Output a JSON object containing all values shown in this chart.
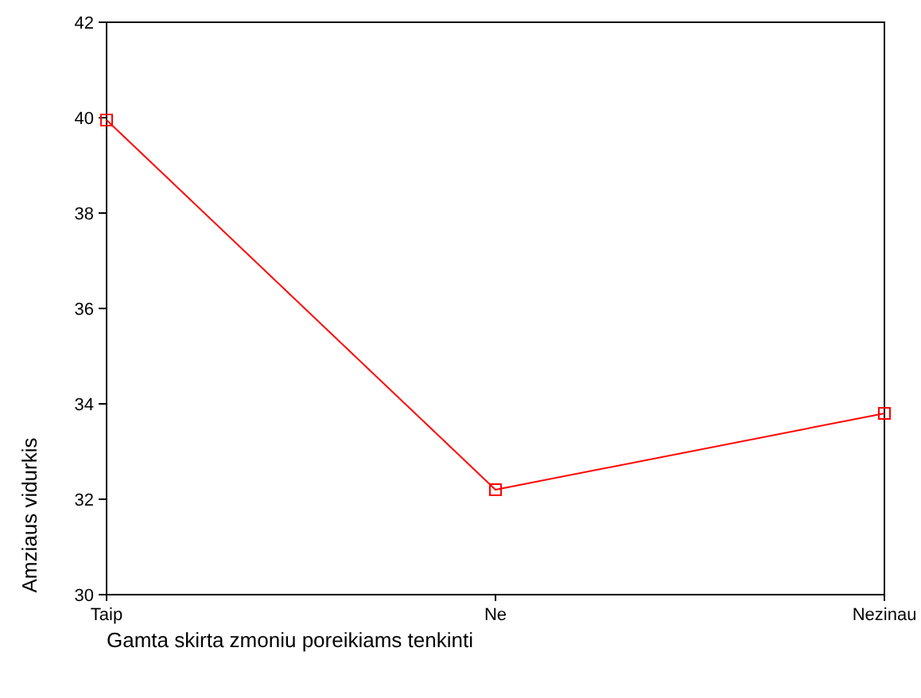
{
  "chart_data": {
    "type": "line",
    "xlabel": "Gamta skirta zmoniu poreikiams tenkinti",
    "ylabel": "Amziaus vidurkis",
    "categories": [
      "Taip",
      "Ne",
      "Nezinau"
    ],
    "series": [
      {
        "color": "#ff0000",
        "values": [
          39.95,
          32.2,
          33.8
        ]
      }
    ],
    "ylim": [
      30,
      42
    ],
    "yticks": [
      30,
      32,
      34,
      36,
      38,
      40,
      42
    ],
    "marker": "square",
    "line_style": "solid"
  }
}
